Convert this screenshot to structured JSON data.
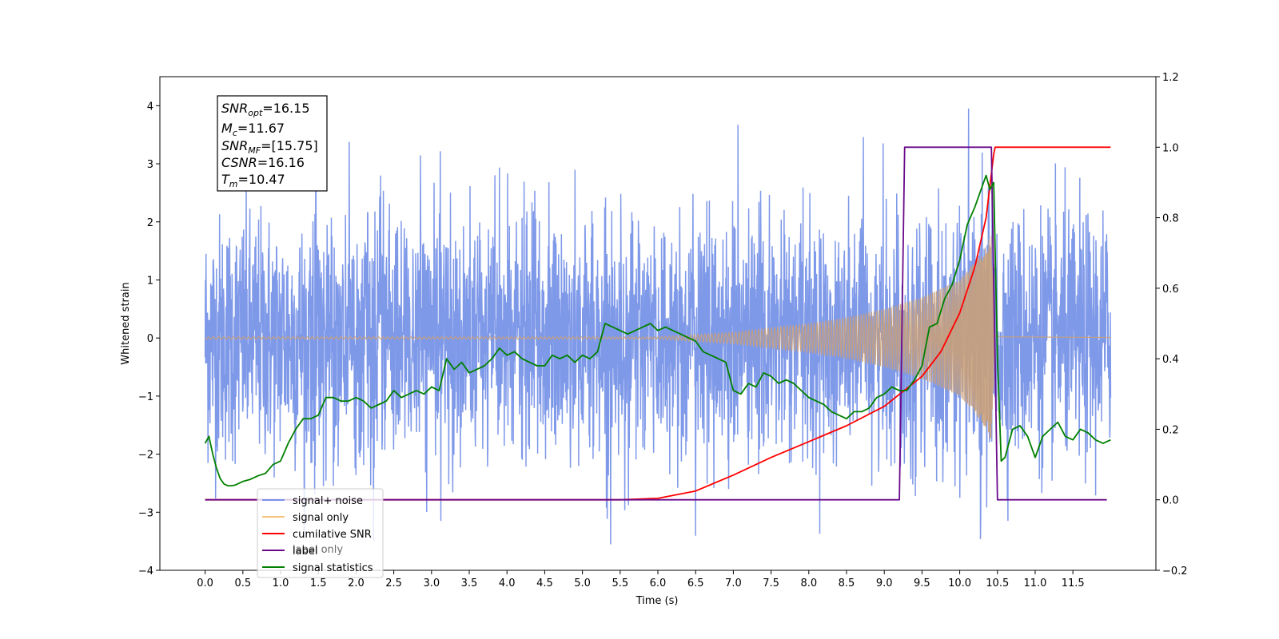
{
  "chart_data": {
    "type": "line",
    "xlabel": "Time (s)",
    "ylabel_left": "Whitened strain",
    "ylabel_right": "",
    "xlim": [
      -0.6,
      12.6
    ],
    "ylim_left": [
      -4,
      4.5
    ],
    "ylim_right": [
      -0.2,
      1.2
    ],
    "x_ticks": [
      "0.0",
      "0.5",
      "1.0",
      "1.5",
      "2.0",
      "2.5",
      "3.0",
      "3.5",
      "4.0",
      "4.5",
      "5.0",
      "5.5",
      "6.0",
      "6.5",
      "7.0",
      "7.5",
      "8.0",
      "8.5",
      "9.0",
      "9.5",
      "10.0",
      "10.5",
      "11.0",
      "11.5"
    ],
    "y_ticks_left": [
      "−4",
      "−3",
      "−2",
      "−1",
      "0",
      "1",
      "2",
      "3",
      "4"
    ],
    "y_ticks_right": [
      "−0.2",
      "0.0",
      "0.2",
      "0.4",
      "0.6",
      "0.8",
      "1.0",
      "1.2"
    ],
    "grid": false,
    "legend_position": "lower-left",
    "annotation": {
      "lines": [
        {
          "sym": "SNR",
          "sub": "opt",
          "value": "=16.15"
        },
        {
          "sym": "M",
          "sub": "c",
          "value": "=11.67"
        },
        {
          "sym": "SNR",
          "sub": "MF",
          "value": "=[15.75]"
        },
        {
          "sym": "CSNR",
          "sub": "",
          "value": "=16.16"
        },
        {
          "sym": "T",
          "sub": "m",
          "value": "=10.47"
        }
      ]
    },
    "legend": [
      {
        "label": "signal+ noise",
        "color": "#7893e8"
      },
      {
        "label": "signal only",
        "color": "#f5c27a"
      },
      {
        "label": "cumilative SNR",
        "color": "#ff0000"
      },
      {
        "label": "label",
        "color": "#6a0a8a"
      },
      {
        "label": "signal statistics",
        "color": "#008000"
      }
    ],
    "hidden_legend_text": "label only",
    "series": [
      {
        "name": "signal+ noise",
        "axis": "left",
        "color": "#7893e8",
        "x_range": [
          0,
          12
        ],
        "description_values": {
          "typical_min": -2.7,
          "typical_max": 2.7,
          "extreme_min": -3.6,
          "extreme_max": 4.1
        }
      },
      {
        "name": "signal only",
        "axis": "left",
        "color": "#f5c27a",
        "x_range": [
          0,
          12
        ],
        "envelope": {
          "x": [
            6.0,
            7.0,
            8.0,
            8.5,
            9.0,
            9.5,
            10.0,
            10.3,
            10.42,
            10.47,
            10.55,
            12.0
          ],
          "y": [
            0.02,
            0.1,
            0.25,
            0.35,
            0.5,
            0.7,
            1.0,
            1.45,
            1.8,
            0.1,
            0.05,
            0.02
          ]
        }
      },
      {
        "name": "cumilative SNR",
        "axis": "right",
        "color": "#ff0000",
        "x": [
          0.0,
          5.0,
          5.5,
          6.0,
          6.5,
          7.0,
          7.5,
          8.0,
          8.5,
          9.0,
          9.5,
          9.75,
          10.0,
          10.2,
          10.35,
          10.45,
          10.47,
          12.0
        ],
        "y": [
          0.0,
          0.0,
          0.0,
          0.004,
          0.025,
          0.07,
          0.12,
          0.165,
          0.21,
          0.265,
          0.35,
          0.42,
          0.53,
          0.66,
          0.8,
          0.98,
          1.0,
          1.0
        ]
      },
      {
        "name": "label",
        "axis": "right",
        "color": "#6a0a8a",
        "x": [
          0.0,
          9.2,
          9.27,
          10.42,
          10.42,
          10.5,
          11.95
        ],
        "y": [
          0.0,
          0.0,
          1.0,
          1.0,
          1.0,
          0.0,
          0.0
        ]
      },
      {
        "name": "signal statistics",
        "axis": "right",
        "color": "#008000",
        "x": [
          0.0,
          0.05,
          0.1,
          0.15,
          0.2,
          0.25,
          0.3,
          0.35,
          0.4,
          0.5,
          0.6,
          0.7,
          0.8,
          0.9,
          1.0,
          1.1,
          1.2,
          1.3,
          1.4,
          1.5,
          1.6,
          1.7,
          1.8,
          1.9,
          2.0,
          2.1,
          2.2,
          2.3,
          2.4,
          2.5,
          2.6,
          2.7,
          2.8,
          2.9,
          3.0,
          3.1,
          3.2,
          3.3,
          3.4,
          3.5,
          3.6,
          3.7,
          3.8,
          3.9,
          4.0,
          4.1,
          4.2,
          4.3,
          4.4,
          4.5,
          4.6,
          4.7,
          4.8,
          4.9,
          5.0,
          5.1,
          5.2,
          5.3,
          5.4,
          5.5,
          5.6,
          5.7,
          5.8,
          5.9,
          6.0,
          6.1,
          6.2,
          6.3,
          6.4,
          6.5,
          6.6,
          6.7,
          6.8,
          6.9,
          7.0,
          7.1,
          7.2,
          7.3,
          7.4,
          7.5,
          7.6,
          7.7,
          7.8,
          7.9,
          8.0,
          8.1,
          8.2,
          8.3,
          8.4,
          8.5,
          8.6,
          8.7,
          8.8,
          8.9,
          9.0,
          9.1,
          9.2,
          9.3,
          9.4,
          9.5,
          9.6,
          9.7,
          9.8,
          9.9,
          10.0,
          10.1,
          10.2,
          10.3,
          10.35,
          10.4,
          10.45,
          10.5,
          10.55,
          10.6,
          10.7,
          10.8,
          10.9,
          11.0,
          11.1,
          11.2,
          11.3,
          11.4,
          11.5,
          11.6,
          11.7,
          11.8,
          11.9,
          12.0
        ],
        "y": [
          0.16,
          0.18,
          0.13,
          0.09,
          0.06,
          0.045,
          0.04,
          0.04,
          0.042,
          0.052,
          0.058,
          0.068,
          0.075,
          0.1,
          0.11,
          0.16,
          0.2,
          0.23,
          0.23,
          0.24,
          0.29,
          0.29,
          0.28,
          0.28,
          0.29,
          0.28,
          0.26,
          0.27,
          0.28,
          0.31,
          0.29,
          0.3,
          0.31,
          0.3,
          0.32,
          0.31,
          0.4,
          0.37,
          0.39,
          0.36,
          0.37,
          0.38,
          0.4,
          0.43,
          0.41,
          0.42,
          0.4,
          0.39,
          0.38,
          0.38,
          0.41,
          0.4,
          0.41,
          0.39,
          0.41,
          0.4,
          0.42,
          0.5,
          0.49,
          0.48,
          0.47,
          0.48,
          0.49,
          0.5,
          0.48,
          0.49,
          0.48,
          0.47,
          0.46,
          0.45,
          0.42,
          0.41,
          0.4,
          0.39,
          0.31,
          0.3,
          0.33,
          0.32,
          0.36,
          0.35,
          0.33,
          0.34,
          0.33,
          0.31,
          0.29,
          0.28,
          0.27,
          0.25,
          0.24,
          0.23,
          0.25,
          0.25,
          0.26,
          0.29,
          0.3,
          0.32,
          0.31,
          0.31,
          0.34,
          0.38,
          0.49,
          0.5,
          0.57,
          0.61,
          0.68,
          0.78,
          0.83,
          0.89,
          0.92,
          0.88,
          0.9,
          0.4,
          0.11,
          0.12,
          0.2,
          0.21,
          0.18,
          0.12,
          0.18,
          0.2,
          0.22,
          0.18,
          0.17,
          0.2,
          0.19,
          0.17,
          0.16,
          0.17
        ]
      }
    ]
  }
}
